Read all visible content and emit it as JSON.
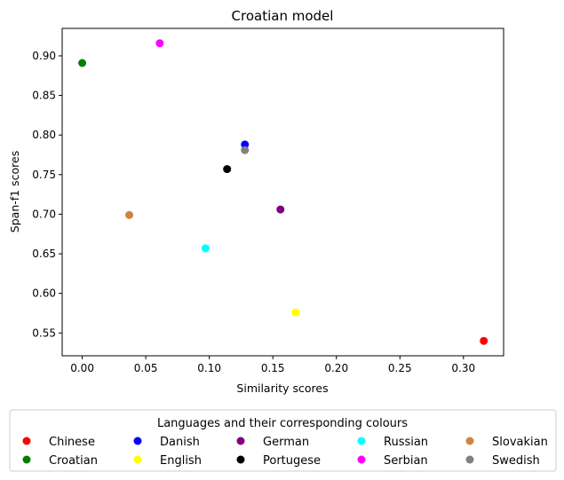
{
  "chart_data": {
    "type": "scatter",
    "title": "Croatian model",
    "xlabel": "Similarity scores",
    "ylabel": "Span-f1 scores",
    "xlim": [
      -0.0158,
      0.3316
    ],
    "ylim": [
      0.5212,
      0.9347
    ],
    "xticks": [
      "0.00",
      "0.05",
      "0.10",
      "0.15",
      "0.20",
      "0.25",
      "0.30"
    ],
    "xtick_values": [
      0.0,
      0.05,
      0.1,
      0.15,
      0.2,
      0.25,
      0.3
    ],
    "yticks": [
      "0.55",
      "0.60",
      "0.65",
      "0.70",
      "0.75",
      "0.80",
      "0.85",
      "0.90"
    ],
    "ytick_values": [
      0.55,
      0.6,
      0.65,
      0.7,
      0.75,
      0.8,
      0.85,
      0.9
    ],
    "grid": false,
    "legend": {
      "title": "Languages and their corresponding colours",
      "placement": "below-plot",
      "columns": 5
    },
    "series": [
      {
        "name": "Chinese",
        "color": "#ff0000",
        "x": 0.316,
        "y": 0.54
      },
      {
        "name": "Croatian",
        "color": "#008000",
        "x": 0.0,
        "y": 0.891
      },
      {
        "name": "Danish",
        "color": "#0000ff",
        "x": 0.128,
        "y": 0.788
      },
      {
        "name": "English",
        "color": "#ffff00",
        "x": 0.168,
        "y": 0.576
      },
      {
        "name": "German",
        "color": "#800080",
        "x": 0.156,
        "y": 0.706
      },
      {
        "name": "Portugese",
        "color": "#000000",
        "x": 0.114,
        "y": 0.757
      },
      {
        "name": "Russian",
        "color": "#00ffff",
        "x": 0.097,
        "y": 0.657
      },
      {
        "name": "Serbian",
        "color": "#ff00ff",
        "x": 0.061,
        "y": 0.916
      },
      {
        "name": "Slovakian",
        "color": "#cd853f",
        "x": 0.037,
        "y": 0.699
      },
      {
        "name": "Swedish",
        "color": "#808080",
        "x": 0.128,
        "y": 0.781
      }
    ]
  }
}
